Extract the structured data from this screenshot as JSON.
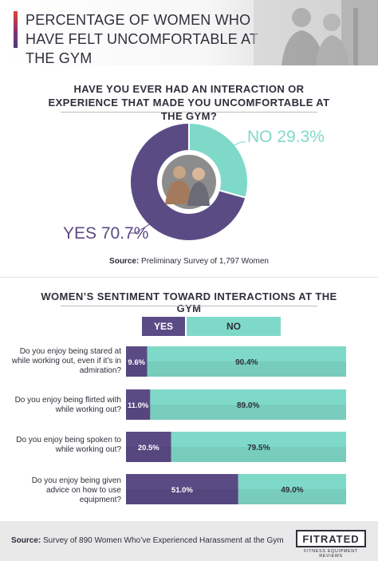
{
  "header": {
    "title": "PERCENTAGE OF WOMEN WHO HAVE FELT UNCOMFORTABLE AT THE GYM"
  },
  "section1": {
    "question": "HAVE YOU EVER HAD AN INTERACTION OR EXPERIENCE THAT MADE YOU UNCOMFORTABLE AT THE GYM?",
    "no_label": "NO 29.3%",
    "yes_label": "YES 70.7%",
    "source_prefix": "Source:",
    "source_text": " Preliminary Survey of 1,797 Women"
  },
  "section2": {
    "title": "WOMEN’S SENTIMENT TOWARD INTERACTIONS AT THE GYM",
    "legend_yes": "YES",
    "legend_no": "NO"
  },
  "footer": {
    "source_prefix": "Source:",
    "source_text": " Survey of 890 Women Who’ve Experienced Harassment at the Gym",
    "logo_text": "FITRATED",
    "logo_sub": "FITNESS EQUIPMENT REVIEWS"
  },
  "colors": {
    "yes": "#5b4b85",
    "no": "#7fd9c8",
    "text": "#2d2d3a"
  },
  "chart_data": [
    {
      "type": "pie",
      "title": "HAVE YOU EVER HAD AN INTERACTION OR EXPERIENCE THAT MADE YOU UNCOMFORTABLE AT THE GYM?",
      "categories": [
        "YES",
        "NO"
      ],
      "values": [
        70.7,
        29.3
      ],
      "labels": [
        "YES 70.7%",
        "NO 29.3%"
      ]
    },
    {
      "type": "bar",
      "title": "WOMEN’S SENTIMENT TOWARD INTERACTIONS AT THE GYM",
      "stacked": true,
      "orientation": "horizontal",
      "categories": [
        "Do you enjoy being stared at while working out, even if it’s in admiration?",
        "Do you enjoy being flirted with while working out?",
        "Do you enjoy being spoken to while working out?",
        "Do you enjoy being given advice on how to use equipment?"
      ],
      "series": [
        {
          "name": "YES",
          "values": [
            9.6,
            11.0,
            20.5,
            51.0
          ],
          "labels": [
            "9.6%",
            "11.0%",
            "20.5%",
            "51.0%"
          ]
        },
        {
          "name": "NO",
          "values": [
            90.4,
            89.0,
            79.5,
            49.0
          ],
          "labels": [
            "90.4%",
            "89.0%",
            "79.5%",
            "49.0%"
          ]
        }
      ],
      "legend": "top"
    }
  ]
}
